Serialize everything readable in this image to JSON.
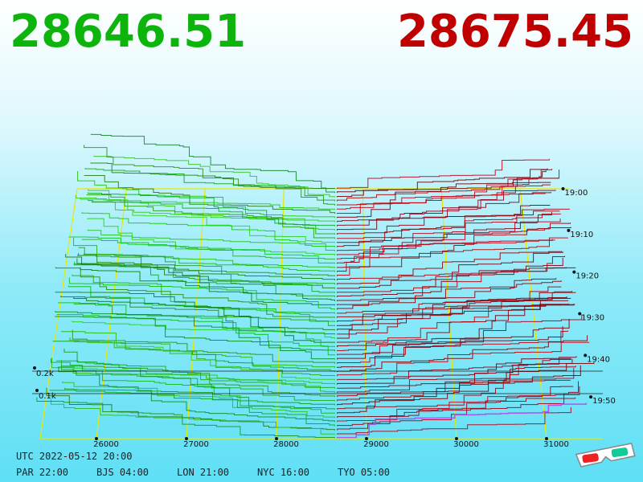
{
  "chart_data": {
    "type": "depth3d",
    "bid": 28646.51,
    "ask": 28675.45,
    "bid_color": "#0cb40c",
    "ask_color": "#c00000",
    "xlim": [
      25375,
      31625
    ],
    "xticks": [
      26000,
      27000,
      28000,
      29000,
      30000,
      31000
    ],
    "yticks": [
      {
        "value": 100,
        "label": "0.1k"
      },
      {
        "value": 200,
        "label": "0.2k"
      }
    ],
    "times": [
      "19:00",
      "19:10",
      "19:20",
      "19:30",
      "19:40",
      "19:50"
    ],
    "grid": true,
    "grid_color": "#e8e800"
  },
  "footer": {
    "utc": "UTC 2022-05-12 20:00",
    "zones": [
      "PAR 22:00",
      "BJS 04:00",
      "LON 21:00",
      "NYC 16:00",
      "TYO 05:00"
    ]
  }
}
